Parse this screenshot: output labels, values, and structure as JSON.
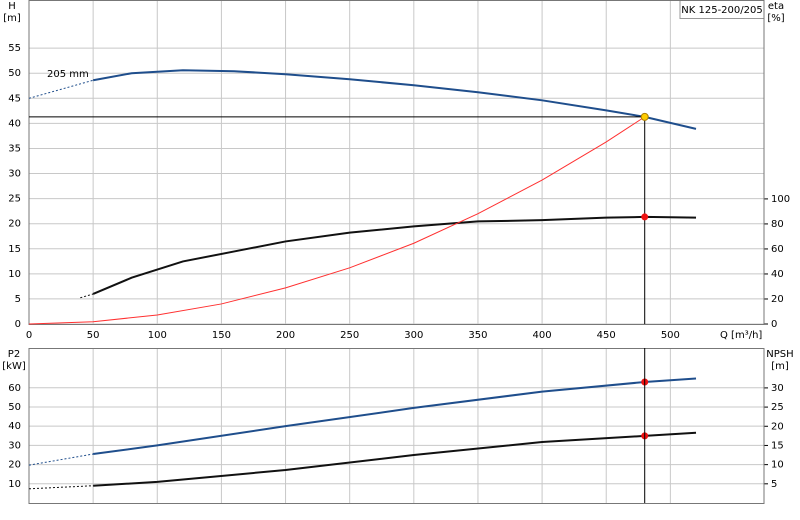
{
  "chart_data": [
    {
      "type": "line",
      "title": "NK 125-200/205",
      "ylabel": [
        "H",
        "[m]"
      ],
      "y2label": [
        "eta",
        "[%]"
      ],
      "xlabel": "Q [m³/h]",
      "annotation": "205 mm",
      "xlim": [
        0,
        573
      ],
      "xticks": [
        0,
        50,
        100,
        150,
        200,
        250,
        300,
        350,
        400,
        450,
        500
      ],
      "ylim": [
        0,
        64.6
      ],
      "yticks": [
        0,
        5,
        10,
        15,
        20,
        25,
        30,
        35,
        40,
        45,
        50,
        55
      ],
      "y2lim": [
        0,
        259
      ],
      "y2ticks": [
        0,
        20,
        40,
        60,
        80,
        100
      ],
      "grid": true,
      "series": [
        {
          "color": "#1f4e8c",
          "width": 2,
          "x": [
            50,
            80,
            120,
            160,
            200,
            250,
            300,
            350,
            400,
            450,
            480,
            520
          ],
          "values": [
            48.6,
            50,
            50.6,
            50.4,
            49.8,
            48.8,
            47.6,
            46.2,
            44.6,
            42.6,
            41.3,
            38.9
          ]
        },
        {
          "color": "#1f4e8c",
          "width": 1,
          "dashed": true,
          "x": [
            0,
            50
          ],
          "values": [
            45,
            48.6
          ]
        },
        {
          "color": "#111111",
          "width": 2,
          "axis": "y2",
          "x": [
            50,
            80,
            120,
            160,
            200,
            250,
            300,
            350,
            400,
            450,
            480,
            520
          ],
          "values": [
            24,
            37,
            50,
            58,
            66,
            73,
            78,
            82,
            83,
            85,
            85.6,
            85
          ]
        },
        {
          "color": "#111111",
          "width": 1,
          "dashed": true,
          "axis": "y2",
          "x": [
            40,
            50
          ],
          "values": [
            21,
            24
          ]
        },
        {
          "color": "#ff3030",
          "width": 1,
          "x": [
            0,
            50,
            100,
            150,
            200,
            250,
            300,
            350,
            400,
            450,
            480
          ],
          "values": [
            0,
            0.45,
            1.8,
            4.0,
            7.2,
            11.2,
            16.1,
            22.0,
            28.7,
            36.3,
            41.3
          ]
        }
      ],
      "markers": [
        {
          "x": 480,
          "y": 41.3,
          "color": "#ffcc00",
          "crosshair": true
        },
        {
          "x": 480,
          "y": 85.6,
          "axis": "y2",
          "color": "#ee1111"
        }
      ]
    },
    {
      "type": "line",
      "ylabel": [
        "P2",
        "[kW]"
      ],
      "y2label": [
        "NPSH",
        "[m]"
      ],
      "xlim": [
        0,
        573
      ],
      "xticks": [
        0,
        50,
        100,
        150,
        200,
        250,
        300,
        350,
        400,
        450,
        500
      ],
      "ylim": [
        0,
        80.7
      ],
      "yticks": [
        10,
        20,
        30,
        40,
        50,
        60
      ],
      "y2lim": [
        0,
        40.4
      ],
      "y2ticks": [
        5,
        10,
        15,
        20,
        25,
        30
      ],
      "grid": true,
      "series": [
        {
          "color": "#1f4e8c",
          "width": 2,
          "x": [
            50,
            100,
            200,
            300,
            400,
            480,
            520
          ],
          "values": [
            25.5,
            30,
            40,
            49.5,
            58,
            63,
            64.8
          ]
        },
        {
          "color": "#1f4e8c",
          "width": 1,
          "dashed": true,
          "x": [
            0,
            50
          ],
          "values": [
            19.7,
            25.5
          ]
        },
        {
          "color": "#111111",
          "width": 2,
          "axis": "y2",
          "x": [
            50,
            100,
            200,
            300,
            400,
            480,
            520
          ],
          "values": [
            4.5,
            5.5,
            8.6,
            12.5,
            15.9,
            17.5,
            18.3
          ]
        },
        {
          "color": "#111111",
          "width": 1,
          "dashed": true,
          "axis": "y2",
          "x": [
            0,
            50
          ],
          "values": [
            3.7,
            4.5
          ]
        }
      ],
      "markers": [
        {
          "x": 480,
          "y": 63,
          "color": "#ee1111"
        },
        {
          "x": 480,
          "y": 17.5,
          "axis": "y2",
          "color": "#ee1111"
        }
      ]
    }
  ]
}
